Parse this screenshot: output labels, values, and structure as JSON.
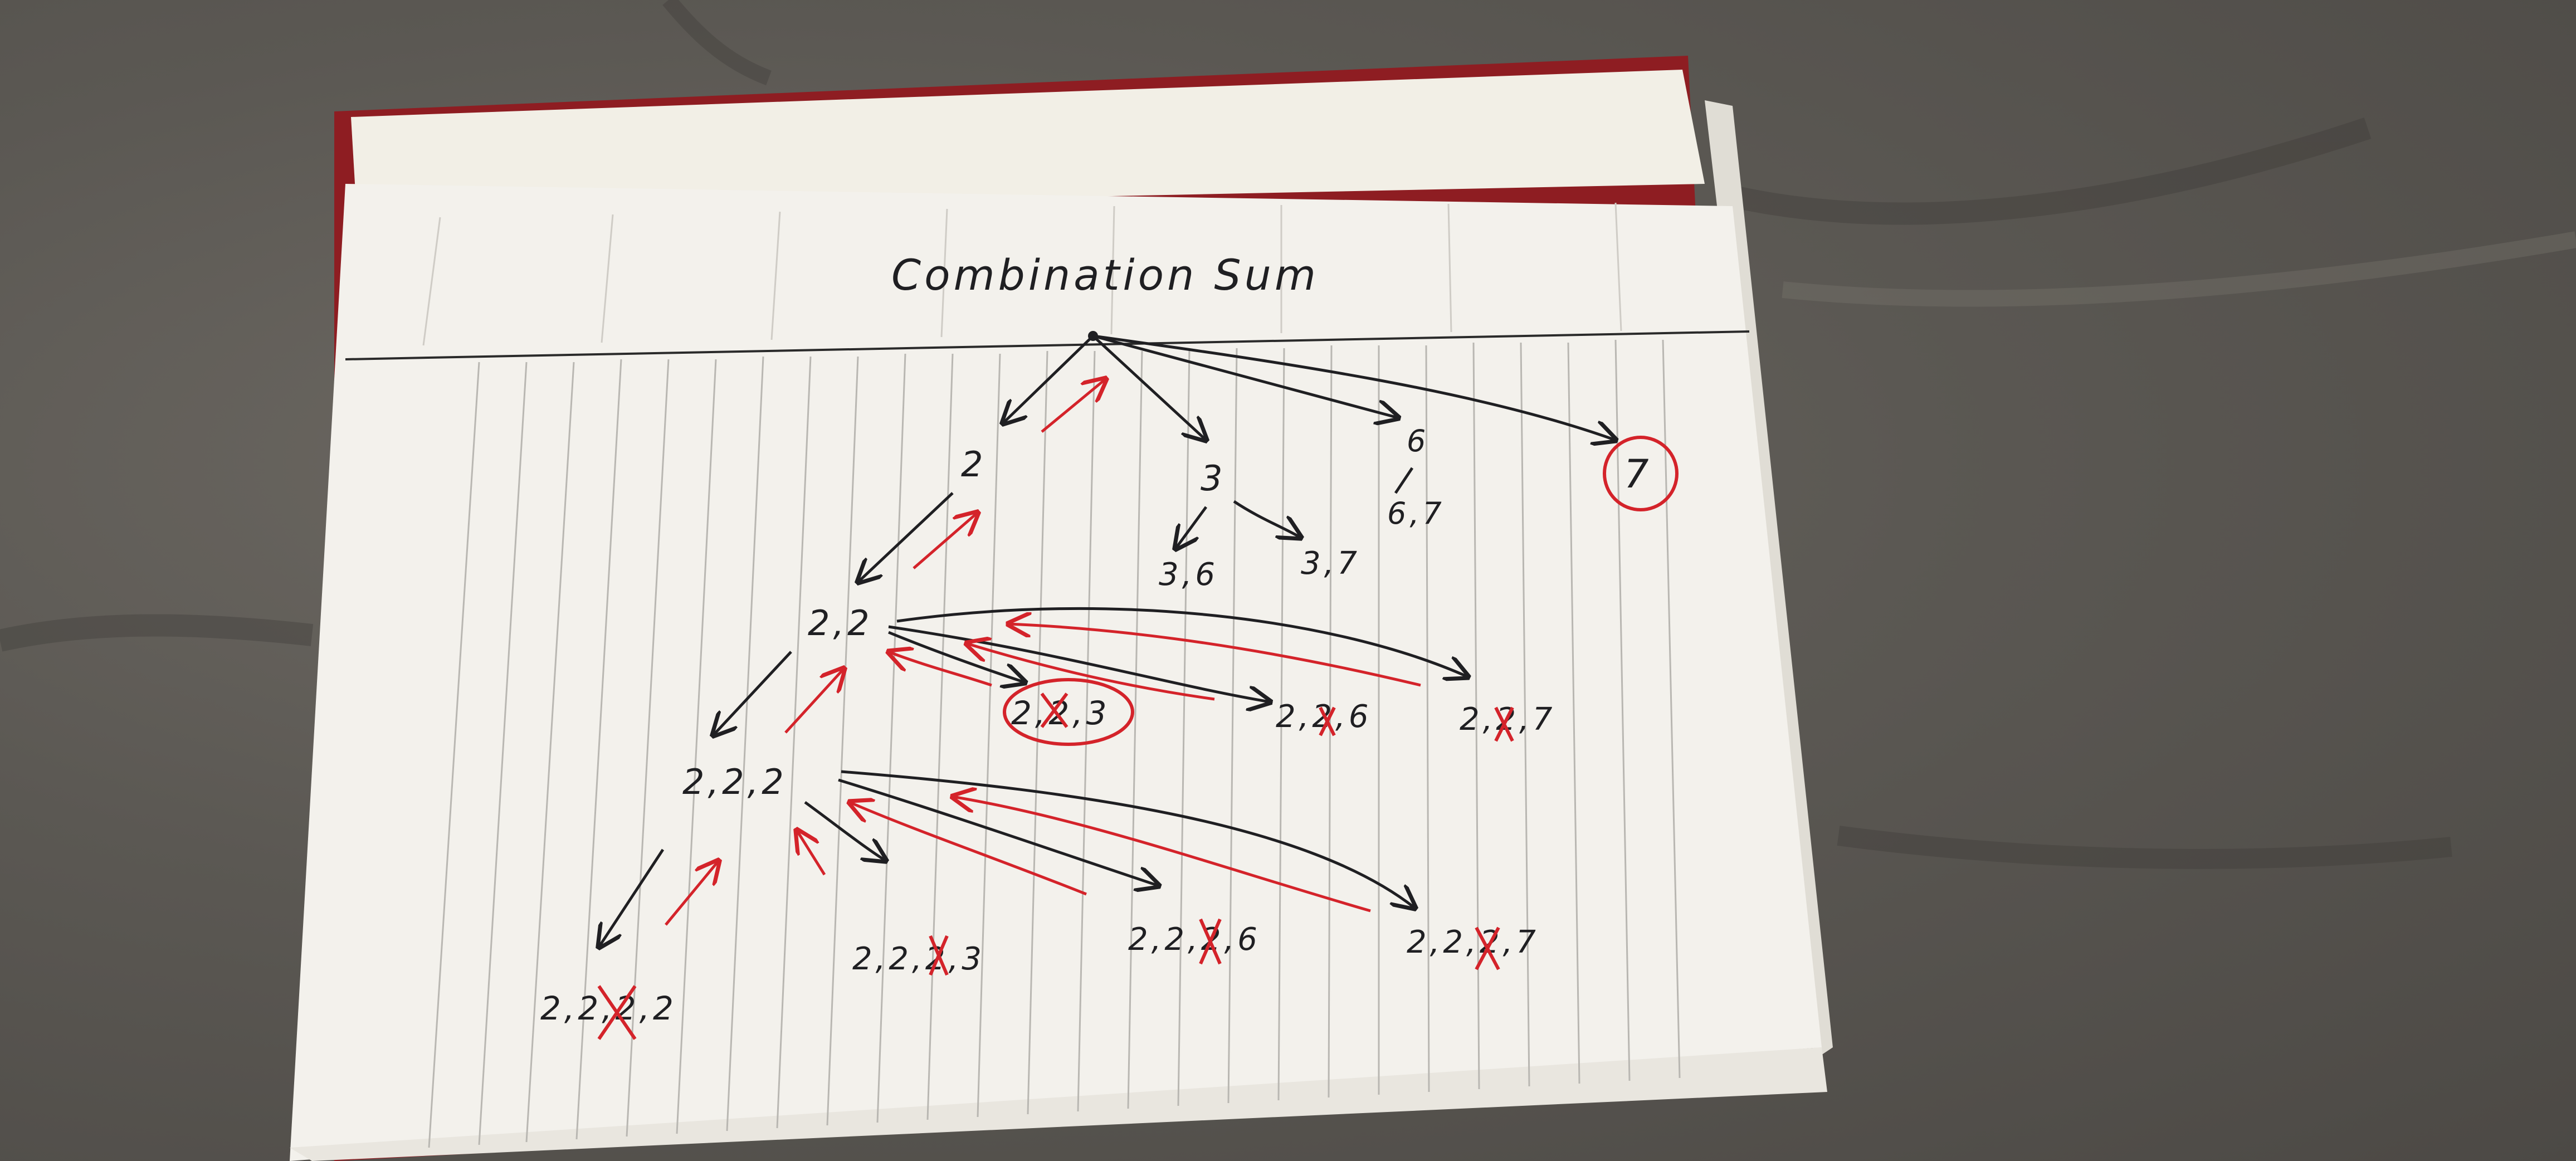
{
  "photo": {
    "subject": "notebook-page-with-handwritten-tree",
    "colors": {
      "ink": "#1f1f22",
      "red_ink": "#d4232a",
      "paper": "#f3f1ec",
      "cover": "#9a1f24",
      "sofa": "#5b5853"
    }
  },
  "notebook": {
    "title": "Combination Sum",
    "root_children": [
      "2",
      "3",
      "6",
      "7"
    ],
    "level2": [
      "2,2",
      "3,6",
      "3,7",
      "6,7"
    ],
    "level3": [
      "2,2,3",
      "2,2,6",
      "2,2,7"
    ],
    "level3_crossed": [
      "2",
      "2",
      "2"
    ],
    "level3_path": "2,2,2",
    "level4": [
      "2,2,2,2",
      "2,2,2,3",
      "2,2,2,6",
      "2,2,2,7"
    ],
    "result_circled": "7"
  }
}
